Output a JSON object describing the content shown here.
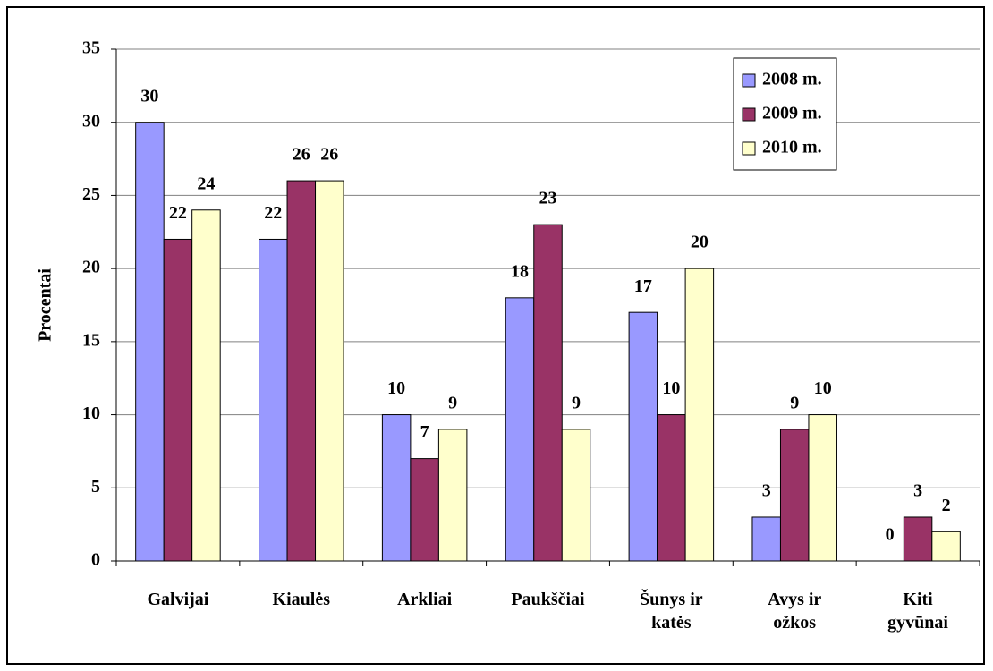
{
  "chart_data": {
    "type": "bar",
    "y_label": "Procentai",
    "categories": [
      "Galvijai",
      "Kiaulės",
      "Arkliai",
      "Paukščiai",
      "Šunys ir katės",
      "Avys ir ožkos",
      "Kiti gyvūnai"
    ],
    "series": [
      {
        "name": "2008 m.",
        "color": "#9999ff",
        "values": [
          30,
          22,
          10,
          18,
          17,
          3,
          0
        ]
      },
      {
        "name": "2009 m.",
        "color": "#993366",
        "values": [
          22,
          26,
          7,
          23,
          10,
          9,
          3
        ]
      },
      {
        "name": "2010 m.",
        "color": "#ffffcc",
        "values": [
          24,
          26,
          9,
          9,
          20,
          10,
          2
        ]
      }
    ],
    "ylim": [
      0,
      35
    ],
    "yticks": [
      0,
      5,
      10,
      15,
      20,
      25,
      30,
      35
    ],
    "grid": true,
    "legend": "top-right"
  }
}
